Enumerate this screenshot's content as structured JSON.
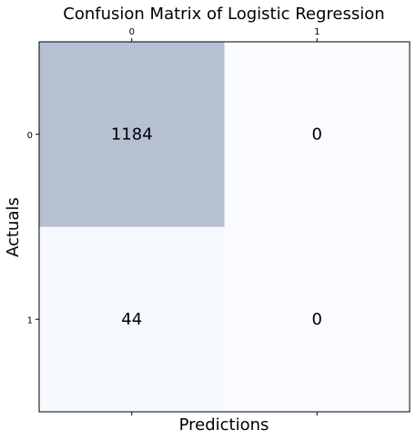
{
  "chart_data": {
    "type": "heatmap",
    "title": "Confusion Matrix of Logistic Regression",
    "xlabel": "Predictions",
    "ylabel": "Actuals",
    "x_ticks": [
      "0",
      "1"
    ],
    "y_ticks": [
      "0",
      "1"
    ],
    "matrix": [
      [
        1184,
        0
      ],
      [
        44,
        0
      ]
    ],
    "colormap": "Blues",
    "cell_alpha": 0.3,
    "colors": {
      "high": "#b5c0d3",
      "low": "#f9fbff",
      "text": "#000000",
      "frame": "#000000"
    }
  }
}
